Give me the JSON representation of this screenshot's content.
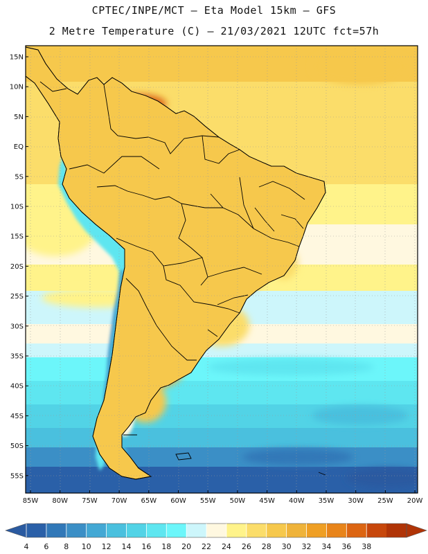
{
  "header": {
    "title_line1": "CPTEC/INPE/MCT –  Eta Model 15km – GFS",
    "title_line2": "2 Metre Temperature (C) – 21/03/2021 12UTC fct=57h"
  },
  "map": {
    "lat_labels": [
      "15N",
      "10N",
      "5N",
      "EQ",
      "5S",
      "10S",
      "15S",
      "20S",
      "25S",
      "30S",
      "35S",
      "40S",
      "45S",
      "50S",
      "55S"
    ],
    "lon_labels": [
      "85W",
      "80W",
      "75W",
      "70W",
      "65W",
      "60W",
      "55W",
      "50W",
      "45W",
      "40W",
      "35W",
      "30W",
      "25W",
      "20W"
    ],
    "colorbar": {
      "ticks": [
        "4",
        "6",
        "8",
        "10",
        "12",
        "14",
        "16",
        "18",
        "20",
        "22",
        "24",
        "26",
        "28",
        "30",
        "32",
        "34",
        "36",
        "38"
      ],
      "colors": [
        "#2a60a8",
        "#3178b8",
        "#3b8fc6",
        "#43a8d4",
        "#4ac0de",
        "#52d3e6",
        "#5ee6f0",
        "#6cf6fa",
        "#cdf6fb",
        "#fff8e0",
        "#fff38a",
        "#fbdd6a",
        "#f6c84c",
        "#efb33a",
        "#ef9f24",
        "#e8841a",
        "#dc6512",
        "#c7470b",
        "#b03407"
      ],
      "under_color": "#2a5aa0",
      "over_color": "#b03407"
    }
  }
}
